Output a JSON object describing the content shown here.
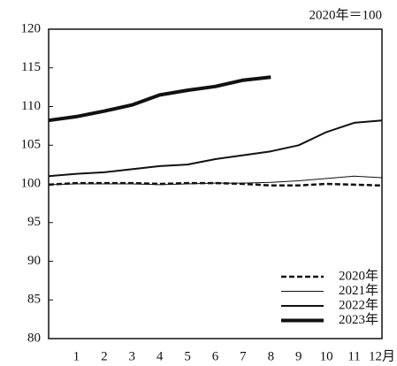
{
  "chart_data": {
    "type": "line",
    "annotation": "2020年＝100",
    "categories": [
      null,
      "1",
      "2",
      "3",
      "4",
      "5",
      "6",
      "7",
      "8",
      "9",
      "10",
      "11",
      "12月"
    ],
    "series": [
      {
        "name": "2020年",
        "color": "#111111",
        "line_width": 2.5,
        "dash": true,
        "values": [
          99.9,
          100.1,
          100.1,
          100.1,
          100.0,
          100.1,
          100.1,
          100.0,
          99.8,
          99.8,
          100.0,
          99.9,
          99.8
        ]
      },
      {
        "name": "2021年",
        "color": "#111111",
        "line_width": 1,
        "dash": false,
        "values": [
          99.9,
          100.0,
          100.0,
          100.0,
          99.9,
          100.0,
          100.1,
          100.1,
          100.2,
          100.4,
          100.7,
          101.0,
          100.8
        ]
      },
      {
        "name": "2022年",
        "color": "#111111",
        "line_width": 2,
        "dash": false,
        "values": [
          101.0,
          101.3,
          101.5,
          101.9,
          102.3,
          102.5,
          103.2,
          103.7,
          104.2,
          105.0,
          106.7,
          107.9,
          108.2
        ]
      },
      {
        "name": "2023年",
        "color": "#111111",
        "line_width": 4,
        "dash": false,
        "values": [
          108.2,
          108.7,
          109.4,
          110.2,
          111.5,
          112.1,
          112.6,
          113.4,
          113.8,
          null,
          null,
          null,
          null
        ]
      }
    ],
    "ylim": [
      80,
      120
    ],
    "yticks": [
      80,
      85,
      90,
      95,
      100,
      105,
      110,
      115,
      120
    ],
    "legend": "bottom-right"
  }
}
